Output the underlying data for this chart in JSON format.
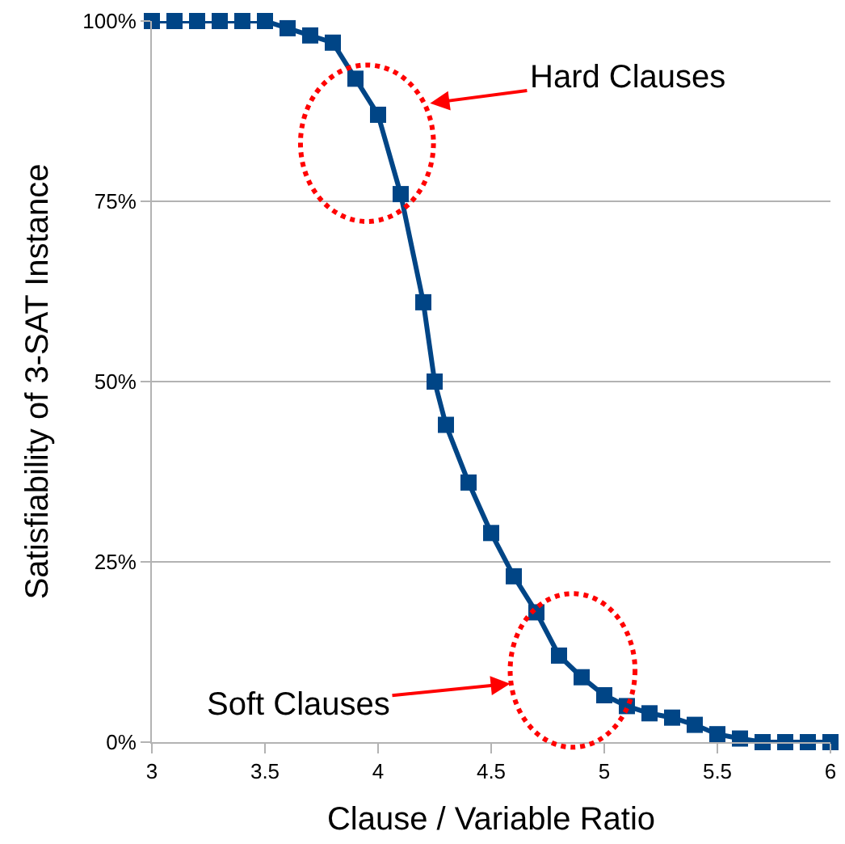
{
  "chart_data": {
    "type": "line",
    "xlabel": "Clause / Variable Ratio",
    "ylabel": "Satisfiability of 3-SAT Instance",
    "x": [
      3.0,
      3.1,
      3.2,
      3.3,
      3.4,
      3.5,
      3.6,
      3.7,
      3.8,
      3.9,
      4.0,
      4.1,
      4.2,
      4.25,
      4.3,
      4.4,
      4.5,
      4.6,
      4.7,
      4.8,
      4.9,
      5.0,
      5.1,
      5.2,
      5.3,
      5.4,
      5.5,
      5.6,
      5.7,
      5.8,
      5.9,
      6.0
    ],
    "series": [
      {
        "color": "#004586",
        "values": [
          100,
          100,
          100,
          100,
          100,
          100,
          99,
          98,
          97,
          92,
          87,
          76,
          61,
          50,
          44,
          36,
          29,
          23,
          18,
          12,
          9,
          6.5,
          5,
          4,
          3.4,
          2.4,
          1.1,
          0.5,
          0,
          0,
          0,
          0
        ]
      }
    ],
    "xlim": [
      3,
      6
    ],
    "xticks": [
      3,
      3.5,
      4,
      4.5,
      5,
      5.5,
      6
    ],
    "ylim": [
      0,
      100
    ],
    "yticks": [
      {
        "value": 0,
        "label": "0%"
      },
      {
        "value": 25,
        "label": "25%"
      },
      {
        "value": 50,
        "label": "50%"
      },
      {
        "value": 75,
        "label": "75%"
      },
      {
        "value": 100,
        "label": "100%"
      }
    ],
    "grid": "y",
    "marker": "square",
    "line_style": "solid",
    "annotations": [
      "Hard Clauses",
      "Soft Clauses"
    ]
  }
}
